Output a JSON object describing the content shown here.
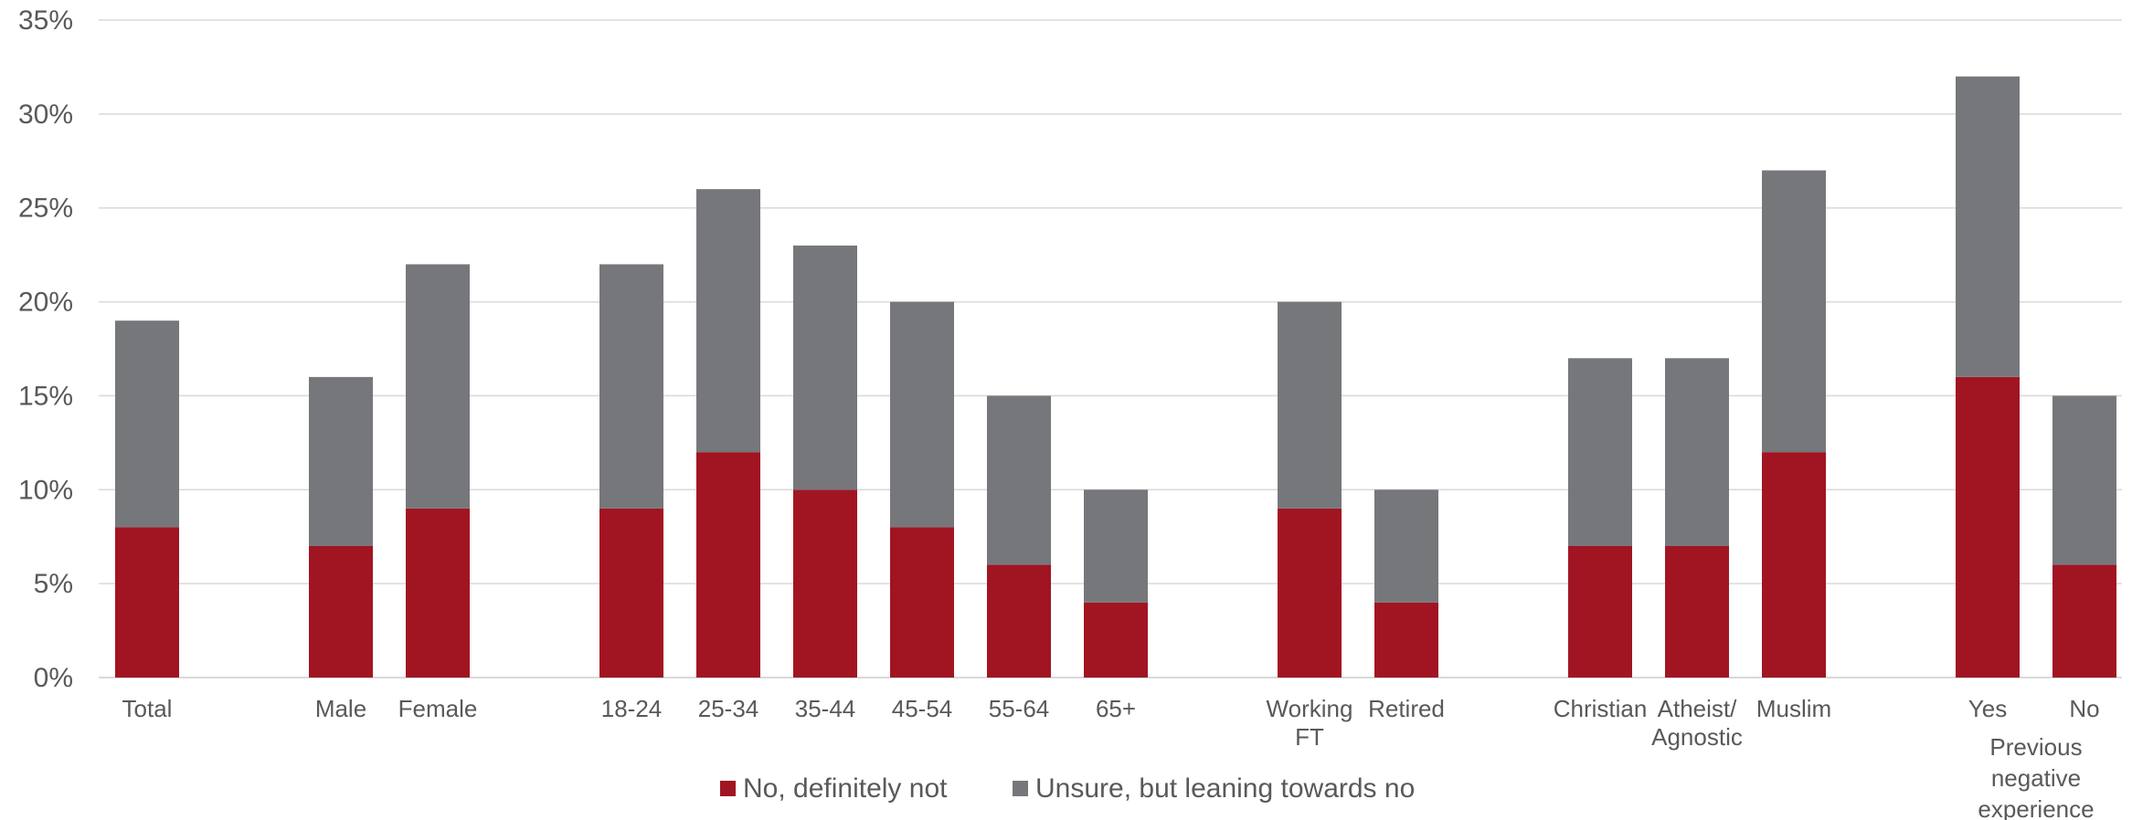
{
  "chart_data": {
    "type": "bar",
    "stacked": true,
    "categories": [
      {
        "label": [
          "Total"
        ],
        "group": 0
      },
      {
        "label": [
          "Male"
        ],
        "group": 1
      },
      {
        "label": [
          "Female"
        ],
        "group": 1
      },
      {
        "label": [
          "18-24"
        ],
        "group": 2
      },
      {
        "label": [
          "25-34"
        ],
        "group": 2
      },
      {
        "label": [
          "35-44"
        ],
        "group": 2
      },
      {
        "label": [
          "45-54"
        ],
        "group": 2
      },
      {
        "label": [
          "55-64"
        ],
        "group": 2
      },
      {
        "label": [
          "65+"
        ],
        "group": 2
      },
      {
        "label": [
          "Working",
          "FT"
        ],
        "group": 3
      },
      {
        "label": [
          "Retired"
        ],
        "group": 3
      },
      {
        "label": [
          "Christian"
        ],
        "group": 4
      },
      {
        "label": [
          "Atheist/",
          "Agnostic"
        ],
        "group": 4
      },
      {
        "label": [
          "Muslim"
        ],
        "group": 4
      },
      {
        "label": [
          "Yes"
        ],
        "group": 5
      },
      {
        "label": [
          "No"
        ],
        "group": 5
      }
    ],
    "group_labels": [
      {
        "group": 5,
        "lines": [
          "Previous",
          "negative",
          "experience"
        ]
      }
    ],
    "series": [
      {
        "name": "No, definitely not",
        "color": "#A11523",
        "values": [
          8,
          7,
          9,
          9,
          12,
          10,
          8,
          6,
          4,
          9,
          4,
          7,
          7,
          12,
          16,
          6
        ]
      },
      {
        "name": "Unsure, but leaning towards no",
        "color": "#76777B",
        "values": [
          11,
          9,
          13,
          13,
          14,
          13,
          12,
          9,
          6,
          11,
          6,
          10,
          10,
          15,
          16,
          9
        ]
      }
    ],
    "y_ticks": [
      "0%",
      "5%",
      "10%",
      "15%",
      "20%",
      "25%",
      "30%",
      "35%"
    ],
    "ylim": [
      0,
      35
    ],
    "y_unit": "%",
    "grid": true,
    "legend_position": "bottom",
    "colors": {
      "grid": "#D9D9D9",
      "text": "#595959"
    }
  }
}
